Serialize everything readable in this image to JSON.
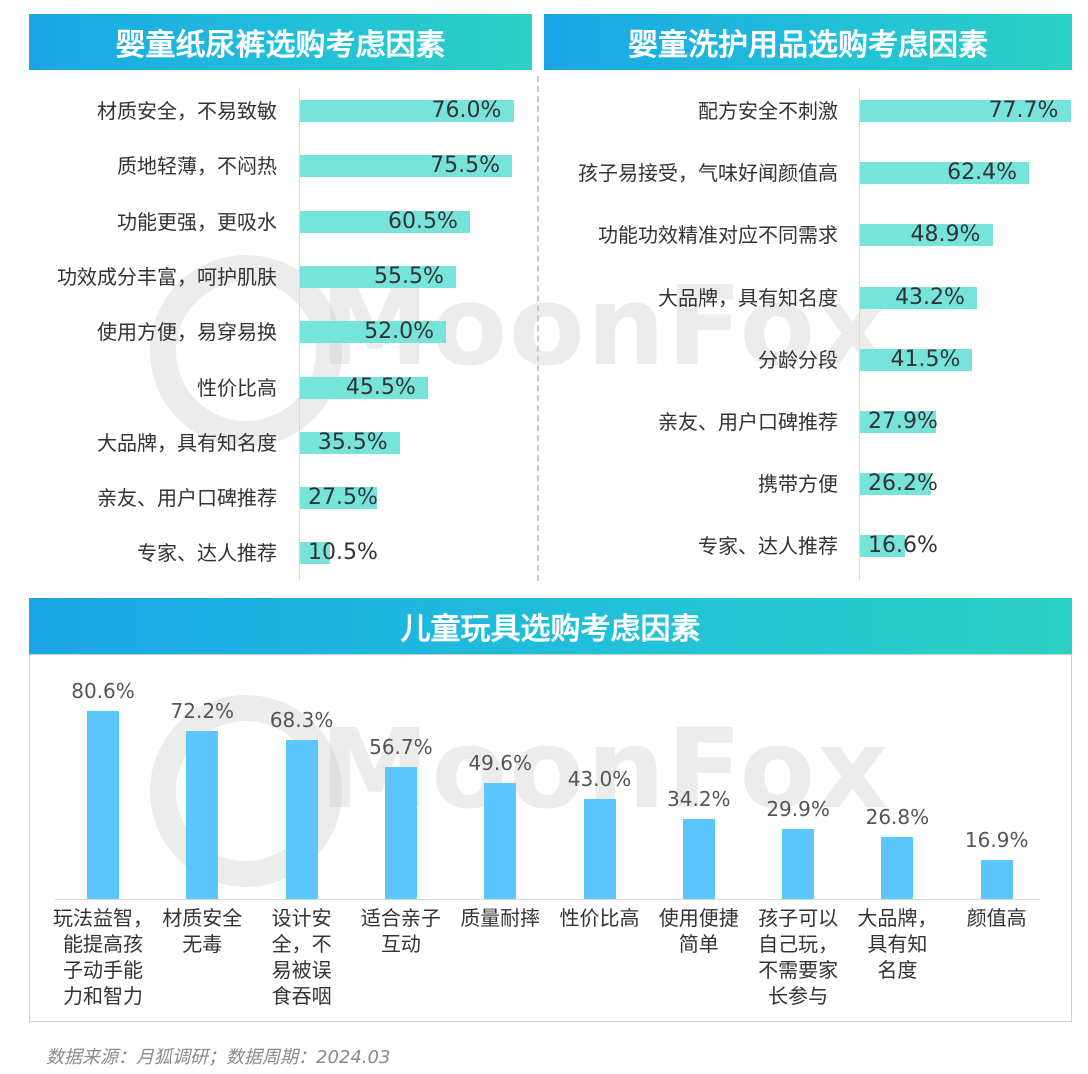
{
  "watermark": "MoonFox",
  "source": "数据来源：月狐调研；数据周期：2024.03",
  "colors": {
    "header_start": "#1aa6e6",
    "header_end": "#2dd0c4",
    "hbar": "#77e4dc",
    "vbar": "#5bc6fb"
  },
  "chart_data": [
    {
      "type": "bar",
      "orientation": "horizontal",
      "title": "婴童纸尿裤选购考虑因素",
      "categories": [
        "材质安全，不易致敏",
        "质地轻薄，不闷热",
        "功能更强，更吸水",
        "功效成分丰富，呵护肌肤",
        "使用方便，易穿易换",
        "性价比高",
        "大品牌，具有知名度",
        "亲友、用户口碑推荐",
        "专家、达人推荐"
      ],
      "values": [
        76.0,
        75.5,
        60.5,
        55.5,
        52.0,
        45.5,
        35.5,
        27.5,
        10.5
      ],
      "labels": [
        "76.0%",
        "75.5%",
        "60.5%",
        "55.5%",
        "52.0%",
        "45.5%",
        "35.5%",
        "27.5%",
        "10.5%"
      ],
      "unit": "%"
    },
    {
      "type": "bar",
      "orientation": "horizontal",
      "title": "婴童洗护用品选购考虑因素",
      "categories": [
        "配方安全不刺激",
        "孩子易接受，气味好闻颜值高",
        "功能功效精准对应不同需求",
        "大品牌，具有知名度",
        "分龄分段",
        "亲友、用户口碑推荐",
        "携带方便",
        "专家、达人推荐"
      ],
      "values": [
        77.7,
        62.4,
        48.9,
        43.2,
        41.5,
        27.9,
        26.2,
        16.6
      ],
      "labels": [
        "77.7%",
        "62.4%",
        "48.9%",
        "43.2%",
        "41.5%",
        "27.9%",
        "26.2%",
        "16.6%"
      ],
      "unit": "%"
    },
    {
      "type": "bar",
      "orientation": "vertical",
      "title": "儿童玩具选购考虑因素",
      "categories": [
        "玩法益智，能提高孩子动手能力和智力",
        "材质安全无毒",
        "设计安全，不易被误食吞咽",
        "适合亲子互动",
        "质量耐摔",
        "性价比高",
        "使用便捷简单",
        "孩子可以自己玩，不需要家长参与",
        "大品牌，具有知名度",
        "颜值高"
      ],
      "category_lines": [
        [
          "玩法益智，",
          "能提高孩",
          "子动手能",
          "力和智力"
        ],
        [
          "材质安全",
          "无毒"
        ],
        [
          "设计安",
          "全，不",
          "易被误",
          "食吞咽"
        ],
        [
          "适合亲子",
          "互动"
        ],
        [
          "质量耐摔"
        ],
        [
          "性价比高"
        ],
        [
          "使用便捷",
          "简单"
        ],
        [
          "孩子可以",
          "自己玩，",
          "不需要家",
          "长参与"
        ],
        [
          "大品牌，",
          "具有知",
          "名度"
        ],
        [
          "颜值高"
        ]
      ],
      "values": [
        80.6,
        72.2,
        68.3,
        56.7,
        49.6,
        43.0,
        34.2,
        29.9,
        26.8,
        16.9
      ],
      "labels": [
        "80.6%",
        "72.2%",
        "68.3%",
        "56.7%",
        "49.6%",
        "43.0%",
        "34.2%",
        "29.9%",
        "26.8%",
        "16.9%"
      ],
      "unit": "%"
    }
  ]
}
